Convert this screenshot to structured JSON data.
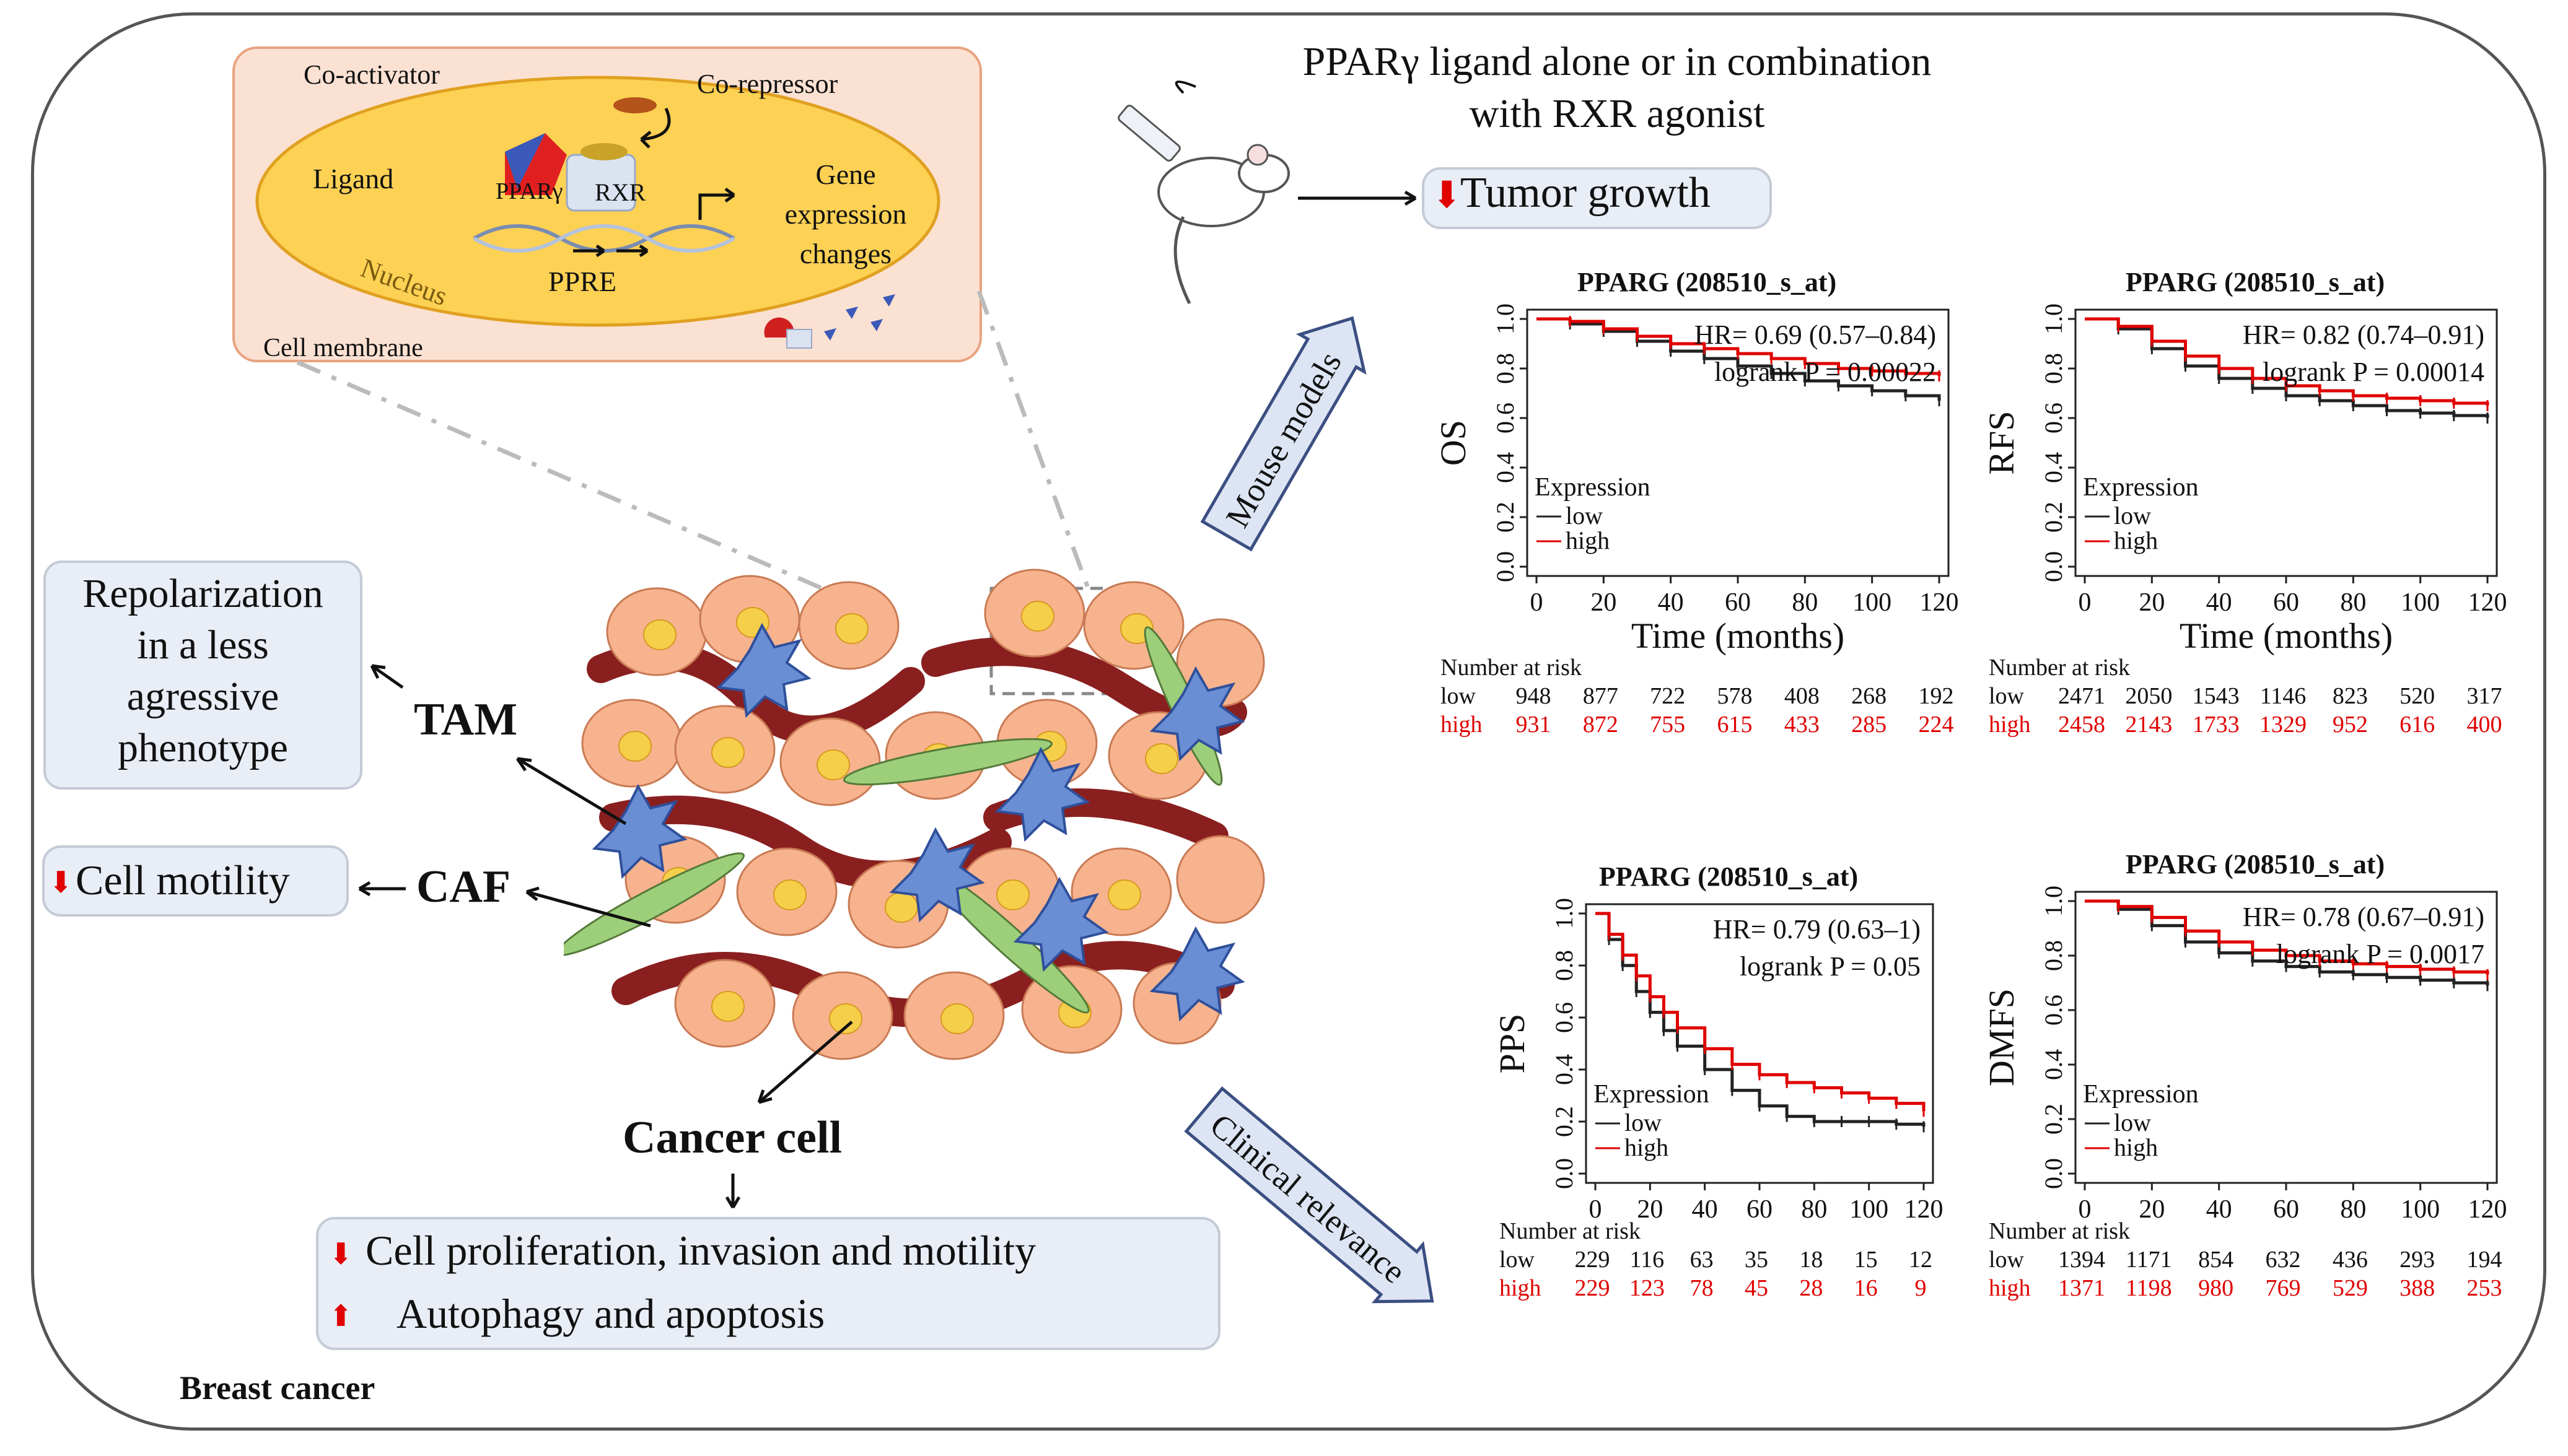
{
  "figure": {
    "context_label": "Breast cancer",
    "nucleus_panel": {
      "co_activator": "Co-activator",
      "co_repressor": "Co-repressor",
      "ligand": "Ligand",
      "receptor_ppar": "PPARγ",
      "receptor_rxr": "RXR",
      "gene_expression": [
        "Gene",
        "expression",
        "changes"
      ],
      "nucleus": "Nucleus",
      "ppre": "PPRE",
      "cell_membrane": "Cell membrane"
    },
    "treatment": {
      "line1": "PPARγ ligand alone or in combination",
      "line2": "with RXR agonist"
    },
    "tumor_growth": "Tumor growth",
    "arrow_labels": {
      "mouse_models": "Mouse models",
      "clinical_relevance": "Clinical relevance"
    },
    "cells": {
      "tam": "TAM",
      "caf": "CAF",
      "cancer_cell": "Cancer cell"
    },
    "effects": {
      "repolarization": [
        "Repolarization",
        "in a less",
        "agressive",
        "phenotype"
      ],
      "cell_motility": "Cell motility",
      "proliferation": "Cell proliferation, invasion and motility",
      "autophagy": "Autophagy and apoptosis"
    }
  },
  "chart_data": [
    {
      "type": "line",
      "title": "PPARG (208510_s_at)",
      "ylabel": "OS",
      "xlabel": "Time (months)",
      "hr_text": "HR= 0.69 (0.57–0.84)",
      "logrank_text": "logrank  P = 0.00022",
      "xlim": [
        0,
        120
      ],
      "ylim": [
        0,
        1
      ],
      "xticks": [
        "0",
        "20",
        "40",
        "60",
        "80",
        "100",
        "120"
      ],
      "yticks": [
        "0.0",
        "0.2",
        "0.4",
        "0.6",
        "0.8",
        "1.0"
      ],
      "legend_title": "Expression",
      "legend_entries": [
        "low",
        "high"
      ],
      "series": [
        {
          "name": "low",
          "color": "#222222",
          "x": [
            0,
            10,
            20,
            30,
            40,
            50,
            60,
            70,
            80,
            90,
            100,
            110,
            120
          ],
          "y": [
            1.0,
            0.98,
            0.95,
            0.91,
            0.87,
            0.84,
            0.81,
            0.78,
            0.75,
            0.73,
            0.71,
            0.69,
            0.67
          ]
        },
        {
          "name": "high",
          "color": "#e00000",
          "x": [
            0,
            10,
            20,
            30,
            40,
            50,
            60,
            70,
            80,
            90,
            100,
            110,
            120
          ],
          "y": [
            1.0,
            0.99,
            0.96,
            0.93,
            0.9,
            0.88,
            0.86,
            0.84,
            0.82,
            0.8,
            0.79,
            0.78,
            0.77
          ]
        }
      ],
      "risk": {
        "header": "Number at risk",
        "low_label": "low",
        "high_label": "high",
        "low": [
          "948",
          "877",
          "722",
          "578",
          "408",
          "268",
          "192"
        ],
        "high": [
          "931",
          "872",
          "755",
          "615",
          "433",
          "285",
          "224"
        ]
      }
    },
    {
      "type": "line",
      "title": "PPARG (208510_s_at)",
      "ylabel": "RFS",
      "xlabel": "Time (months)",
      "hr_text": "HR= 0.82 (0.74–0.91)",
      "logrank_text": "logrank  P = 0.00014",
      "xlim": [
        0,
        120
      ],
      "ylim": [
        0,
        1
      ],
      "xticks": [
        "0",
        "20",
        "40",
        "60",
        "80",
        "100",
        "120"
      ],
      "yticks": [
        "0.0",
        "0.2",
        "0.4",
        "0.6",
        "0.8",
        "1.0"
      ],
      "legend_title": "Expression",
      "legend_entries": [
        "low",
        "high"
      ],
      "series": [
        {
          "name": "low",
          "color": "#222222",
          "x": [
            0,
            10,
            20,
            30,
            40,
            50,
            60,
            70,
            80,
            90,
            100,
            110,
            120
          ],
          "y": [
            1.0,
            0.96,
            0.88,
            0.81,
            0.76,
            0.72,
            0.69,
            0.67,
            0.65,
            0.63,
            0.62,
            0.61,
            0.6
          ]
        },
        {
          "name": "high",
          "color": "#e00000",
          "x": [
            0,
            10,
            20,
            30,
            40,
            50,
            60,
            70,
            80,
            90,
            100,
            110,
            120
          ],
          "y": [
            1.0,
            0.97,
            0.91,
            0.85,
            0.8,
            0.76,
            0.73,
            0.71,
            0.69,
            0.68,
            0.67,
            0.66,
            0.65
          ]
        }
      ],
      "risk": {
        "header": "Number at risk",
        "low_label": "low",
        "high_label": "high",
        "low": [
          "2471",
          "2050",
          "1543",
          "1146",
          "823",
          "520",
          "317"
        ],
        "high": [
          "2458",
          "2143",
          "1733",
          "1329",
          "952",
          "616",
          "400"
        ]
      }
    },
    {
      "type": "line",
      "title": "PPARG (208510_s_at)",
      "ylabel": "PPS",
      "xlabel": "",
      "hr_text": "HR= 0.79 (0.63–1)",
      "logrank_text": "logrank  P = 0.05",
      "xlim": [
        0,
        120
      ],
      "ylim": [
        0,
        1
      ],
      "xticks": [
        "0",
        "20",
        "40",
        "60",
        "80",
        "100",
        "120"
      ],
      "yticks": [
        "0.0",
        "0.2",
        "0.4",
        "0.6",
        "0.8",
        "1.0"
      ],
      "legend_title": "Expression",
      "legend_entries": [
        "low",
        "high"
      ],
      "series": [
        {
          "name": "low",
          "color": "#222222",
          "x": [
            0,
            5,
            10,
            15,
            20,
            25,
            30,
            40,
            50,
            60,
            70,
            80,
            90,
            100,
            110,
            120
          ],
          "y": [
            1.0,
            0.9,
            0.8,
            0.7,
            0.62,
            0.55,
            0.49,
            0.4,
            0.32,
            0.26,
            0.22,
            0.2,
            0.2,
            0.2,
            0.19,
            0.18
          ]
        },
        {
          "name": "high",
          "color": "#e00000",
          "x": [
            0,
            5,
            10,
            15,
            20,
            25,
            30,
            40,
            50,
            60,
            70,
            80,
            90,
            100,
            110,
            120
          ],
          "y": [
            1.0,
            0.92,
            0.84,
            0.76,
            0.68,
            0.62,
            0.56,
            0.48,
            0.42,
            0.38,
            0.35,
            0.33,
            0.31,
            0.29,
            0.27,
            0.24
          ]
        }
      ],
      "risk": {
        "header": "Number at risk",
        "low_label": "low",
        "high_label": "high",
        "low": [
          "229",
          "116",
          "63",
          "35",
          "18",
          "15",
          "12"
        ],
        "high": [
          "229",
          "123",
          "78",
          "45",
          "28",
          "16",
          "9"
        ]
      }
    },
    {
      "type": "line",
      "title": "PPARG (208510_s_at)",
      "ylabel": "DMFS",
      "xlabel": "",
      "hr_text": "HR= 0.78 (0.67–0.91)",
      "logrank_text": "logrank  P = 0.0017",
      "xlim": [
        0,
        120
      ],
      "ylim": [
        0,
        1
      ],
      "xticks": [
        "0",
        "20",
        "40",
        "60",
        "80",
        "100",
        "120"
      ],
      "yticks": [
        "0.0",
        "0.2",
        "0.4",
        "0.6",
        "0.8",
        "1.0"
      ],
      "legend_title": "Expression",
      "legend_entries": [
        "low",
        "high"
      ],
      "series": [
        {
          "name": "low",
          "color": "#222222",
          "x": [
            0,
            10,
            20,
            30,
            40,
            50,
            60,
            70,
            80,
            90,
            100,
            110,
            120
          ],
          "y": [
            1.0,
            0.97,
            0.91,
            0.85,
            0.81,
            0.78,
            0.76,
            0.74,
            0.73,
            0.72,
            0.71,
            0.7,
            0.69
          ]
        },
        {
          "name": "high",
          "color": "#e00000",
          "x": [
            0,
            10,
            20,
            30,
            40,
            50,
            60,
            70,
            80,
            90,
            100,
            110,
            120
          ],
          "y": [
            1.0,
            0.98,
            0.94,
            0.89,
            0.85,
            0.82,
            0.8,
            0.78,
            0.77,
            0.76,
            0.75,
            0.74,
            0.73
          ]
        }
      ],
      "risk": {
        "header": "Number at risk",
        "low_label": "low",
        "high_label": "high",
        "low": [
          "1394",
          "1171",
          "854",
          "632",
          "436",
          "293",
          "194"
        ],
        "high": [
          "1371",
          "1198",
          "980",
          "769",
          "529",
          "388",
          "253"
        ]
      }
    }
  ]
}
